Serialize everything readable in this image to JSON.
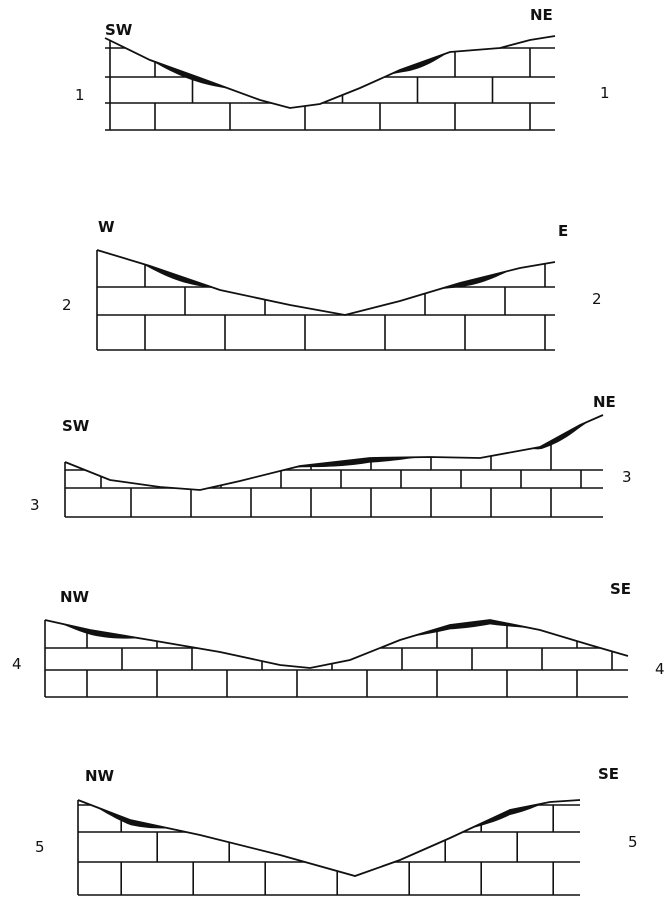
{
  "sections": [
    {
      "left_direction": "SW",
      "right_direction": "NE",
      "left_number": "1",
      "right_number": "1"
    },
    {
      "left_direction": "W",
      "right_direction": "E",
      "left_number": "2",
      "right_number": "2"
    },
    {
      "left_direction": "SW",
      "right_direction": "NE",
      "left_number": "3",
      "right_number": "3"
    },
    {
      "left_direction": "NW",
      "right_direction": "SE",
      "left_number": "4",
      "right_number": "4"
    },
    {
      "left_direction": "NW",
      "right_direction": "SE",
      "left_number": "5",
      "right_number": "5"
    }
  ]
}
